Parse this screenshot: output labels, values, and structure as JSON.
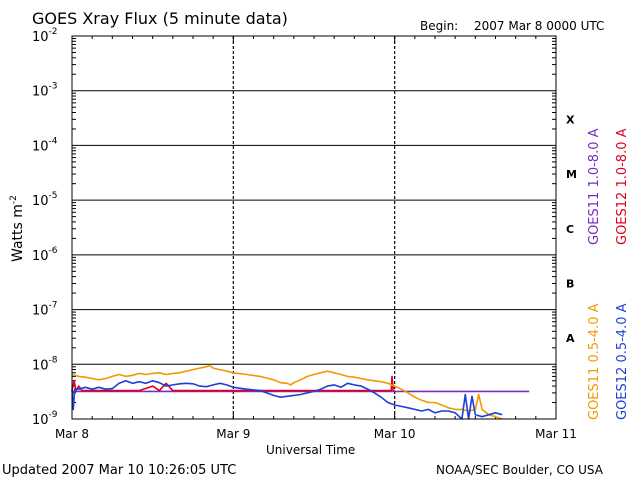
{
  "chart_data": {
    "type": "line",
    "title": "GOES Xray Flux (5 minute data)",
    "begin_label": "Begin:",
    "begin_value": "2007 Mar 8 0000 UTC",
    "xlabel": "Universal Time",
    "ylabel": "Watts m",
    "ylabel_exp": "-2",
    "y_scale": "log",
    "ylim": [
      1e-09,
      0.01
    ],
    "xlim": [
      "2007-03-08 00:00",
      "2007-03-11 00:00"
    ],
    "x_ticks": [
      "Mar 8",
      "Mar 9",
      "Mar 10",
      "Mar 11"
    ],
    "y_ticks": [
      {
        "base": "10",
        "exp": "-2",
        "value": 0.01
      },
      {
        "base": "10",
        "exp": "-3",
        "value": 0.001
      },
      {
        "base": "10",
        "exp": "-4",
        "value": 0.0001
      },
      {
        "base": "10",
        "exp": "-5",
        "value": 1e-05
      },
      {
        "base": "10",
        "exp": "-6",
        "value": 1e-06
      },
      {
        "base": "10",
        "exp": "-7",
        "value": 1e-07
      },
      {
        "base": "10",
        "exp": "-8",
        "value": 1e-08
      },
      {
        "base": "10",
        "exp": "-9",
        "value": 1e-09
      }
    ],
    "flare_classes": [
      {
        "label": "X",
        "value": 0.0003
      },
      {
        "label": "M",
        "value": 3e-05
      },
      {
        "label": "C",
        "value": 3e-06
      },
      {
        "label": "B",
        "value": 3e-07
      },
      {
        "label": "A",
        "value": 3e-08
      }
    ],
    "series": [
      {
        "name": "GOES11 1.0-8.0 A",
        "color": "#7b2cbf",
        "x_hours": [
          0,
          4,
          8,
          12,
          16,
          20,
          24,
          28,
          32,
          36,
          40,
          44,
          48,
          52,
          56,
          60,
          64,
          68
        ],
        "values": [
          3.2e-09,
          3.2e-09,
          3.2e-09,
          3.2e-09,
          3.2e-09,
          3.2e-09,
          3.2e-09,
          3.2e-09,
          3.2e-09,
          3.2e-09,
          3.2e-09,
          3.2e-09,
          3.2e-09,
          3.2e-09,
          3.2e-09,
          3.2e-09,
          3.2e-09,
          3.2e-09
        ]
      },
      {
        "name": "GOES12 1.0-8.0 A",
        "color": "#e0001b",
        "x_hours": [
          0,
          0.3,
          0.6,
          1,
          1.5,
          2,
          3,
          4,
          5,
          6,
          8,
          10,
          12,
          13,
          14,
          15,
          16,
          18,
          20,
          22,
          24,
          26,
          28,
          30,
          32,
          34,
          36,
          38,
          40,
          42,
          44,
          46,
          47.5,
          47.6,
          47.8,
          48
        ],
        "values": [
          3.3e-09,
          5e-09,
          3.3e-09,
          4e-09,
          3.3e-09,
          3.3e-09,
          3.3e-09,
          3.3e-09,
          3.3e-09,
          3.3e-09,
          3.3e-09,
          3.3e-09,
          4e-09,
          3.3e-09,
          4.5e-09,
          3.3e-09,
          3.3e-09,
          3.3e-09,
          3.3e-09,
          3.3e-09,
          3.3e-09,
          3.3e-09,
          3.3e-09,
          3.3e-09,
          3.3e-09,
          3.3e-09,
          3.3e-09,
          3.3e-09,
          3.3e-09,
          3.3e-09,
          3.3e-09,
          3.3e-09,
          3.3e-09,
          6e-09,
          3.3e-09,
          3.3e-09
        ]
      },
      {
        "name": "GOES11 0.5-4.0 A",
        "color": "#f29900",
        "x_hours": [
          0,
          1,
          2,
          3,
          4,
          5,
          6,
          7,
          8,
          9,
          10,
          11,
          12,
          13,
          14,
          15,
          16,
          17,
          18,
          19,
          20,
          20.5,
          21,
          22,
          23,
          24,
          26,
          28,
          30,
          31,
          32,
          32.5,
          33,
          34,
          35,
          36,
          37,
          38,
          39,
          40,
          41,
          42,
          43,
          44,
          45,
          46,
          47,
          48,
          49,
          50,
          51,
          52,
          53,
          54,
          55,
          56,
          57,
          58,
          59,
          60,
          60.5,
          61,
          62,
          63,
          64
        ],
        "values": [
          6.5e-09,
          6e-09,
          5.8e-09,
          5.5e-09,
          5.2e-09,
          5.5e-09,
          6e-09,
          6.5e-09,
          6e-09,
          6.3e-09,
          6.8e-09,
          6.5e-09,
          6.8e-09,
          7e-09,
          6.5e-09,
          6.8e-09,
          7e-09,
          7.5e-09,
          8e-09,
          8.5e-09,
          9e-09,
          9.5e-09,
          8.5e-09,
          8e-09,
          7.5e-09,
          7e-09,
          6.5e-09,
          6e-09,
          5.2e-09,
          4.6e-09,
          4.5e-09,
          4.2e-09,
          4.6e-09,
          5.2e-09,
          6e-09,
          6.5e-09,
          7e-09,
          7.5e-09,
          7e-09,
          6.5e-09,
          6e-09,
          5.8e-09,
          5.5e-09,
          5.2e-09,
          5e-09,
          4.8e-09,
          4.5e-09,
          4e-09,
          3.5e-09,
          3e-09,
          2.5e-09,
          2.2e-09,
          2e-09,
          2e-09,
          1.8e-09,
          1.6e-09,
          1.5e-09,
          1.5e-09,
          1.4e-09,
          1.5e-09,
          2.8e-09,
          1.5e-09,
          1.2e-09,
          1.1e-09,
          1e-09
        ]
      },
      {
        "name": "GOES12 0.5-4.0 A",
        "color": "#1f3fd6",
        "x_hours": [
          0,
          0.2,
          0.4,
          1,
          2,
          3,
          4,
          5,
          6,
          7,
          8,
          9,
          10,
          11,
          12,
          13,
          14,
          15,
          16,
          17,
          18,
          19,
          20,
          21,
          22,
          23,
          24,
          26,
          28,
          30,
          31,
          32,
          33,
          34,
          35,
          36,
          37,
          38,
          39,
          40,
          41,
          42,
          43,
          44,
          45,
          46,
          47,
          48,
          49,
          50,
          51,
          52,
          53,
          54,
          55,
          56,
          57,
          58,
          58.5,
          59,
          59.5,
          60,
          61,
          62,
          63,
          64
        ],
        "values": [
          3.5e-09,
          1.5e-09,
          3.5e-09,
          3.5e-09,
          3.8e-09,
          3.5e-09,
          3.8e-09,
          3.5e-09,
          3.6e-09,
          4.5e-09,
          5e-09,
          4.5e-09,
          4.8e-09,
          4.5e-09,
          5e-09,
          4.6e-09,
          4e-09,
          4.2e-09,
          4.4e-09,
          4.5e-09,
          4.4e-09,
          4e-09,
          3.9e-09,
          4.2e-09,
          4.5e-09,
          4.2e-09,
          3.8e-09,
          3.5e-09,
          3.3e-09,
          2.7e-09,
          2.5e-09,
          2.6e-09,
          2.7e-09,
          2.8e-09,
          3e-09,
          3.2e-09,
          3.5e-09,
          4e-09,
          4.2e-09,
          3.8e-09,
          4.5e-09,
          4.2e-09,
          4e-09,
          3.5e-09,
          3e-09,
          2.5e-09,
          2e-09,
          1.8e-09,
          1.7e-09,
          1.6e-09,
          1.5e-09,
          1.4e-09,
          1.5e-09,
          1.3e-09,
          1.4e-09,
          1.4e-09,
          1.3e-09,
          1e-09,
          2.8e-09,
          1e-09,
          2.6e-09,
          1.2e-09,
          1.1e-09,
          1.2e-09,
          1.3e-09,
          1.2e-09
        ]
      }
    ],
    "updated_text": "Updated 2007 Mar 10 10:26:05 UTC",
    "credit_text": "NOAA/SEC Boulder, CO USA"
  }
}
